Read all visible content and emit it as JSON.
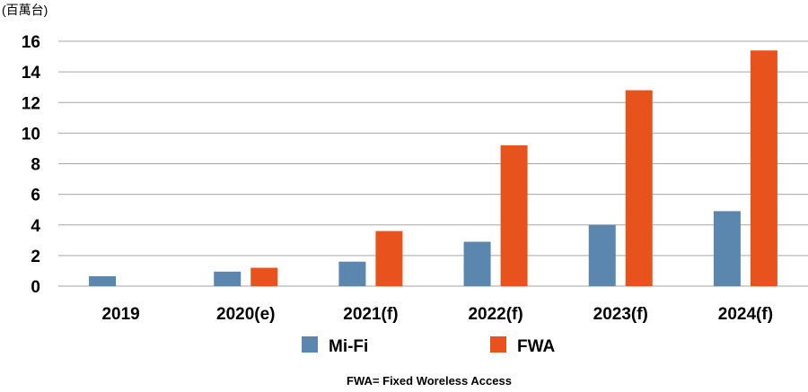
{
  "chart_data": {
    "type": "bar",
    "ylabel": "(百萬台)",
    "ylim": [
      0,
      16
    ],
    "yticks": [
      0,
      2,
      4,
      6,
      8,
      10,
      12,
      14,
      16
    ],
    "grid": true,
    "legend_position": "bottom",
    "categories": [
      "2019",
      "2020(e)",
      "2021(f)",
      "2022(f)",
      "2023(f)",
      "2024(f)"
    ],
    "series": [
      {
        "name": "Mi-Fi",
        "color": "#5b86ad",
        "values": [
          0.65,
          0.95,
          1.6,
          2.9,
          4.0,
          4.9
        ]
      },
      {
        "name": "FWA",
        "color": "#e8531d",
        "values": [
          0,
          1.2,
          3.6,
          9.2,
          12.8,
          15.4
        ]
      }
    ],
    "footnote": "FWA= Fixed Woreless Access"
  }
}
